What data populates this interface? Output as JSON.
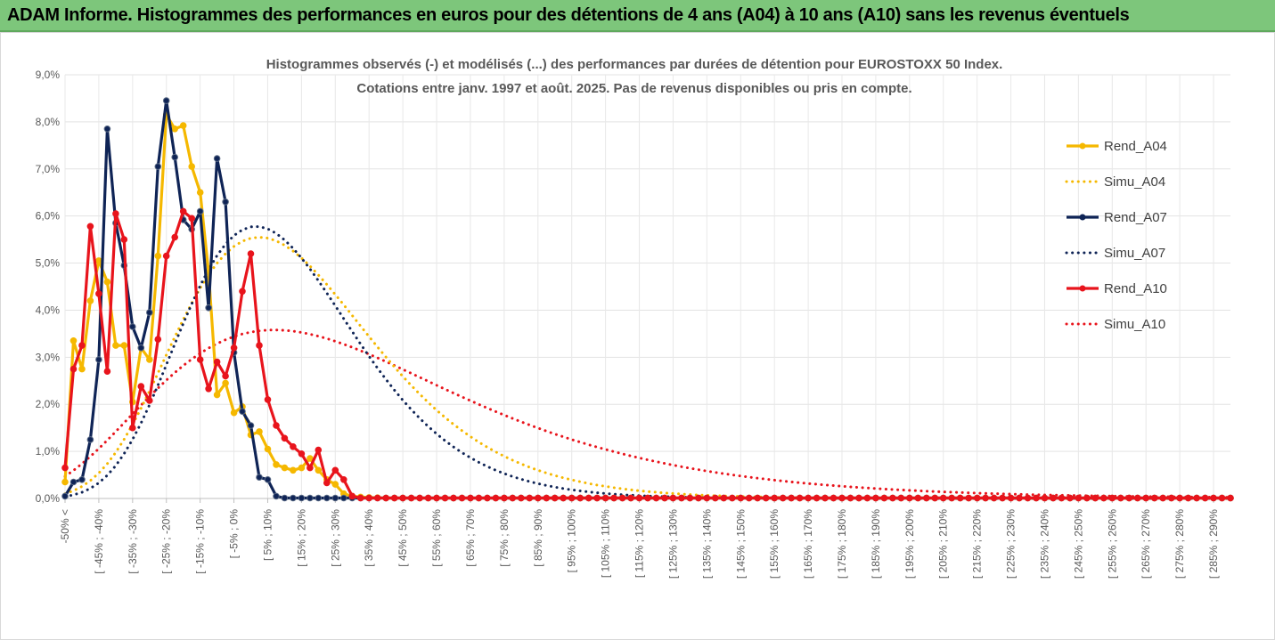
{
  "header": {
    "title": "ADAM Informe. Histogrammes des performances en euros pour des détentions de 4 ans (A04) à 10 ans (A10) sans les revenus éventuels"
  },
  "chart_data": {
    "type": "line",
    "title_lines": [
      "Histogrammes observés (-) et modélisés (...) des performances par durées de détention pour EUROSTOXX 50 Index.",
      "Cotations entre janv. 1997 et août. 2025. Pas de revenus disponibles ou pris en compte."
    ],
    "xlabel": "",
    "ylabel": "",
    "ylim": [
      0,
      9
    ],
    "y_ticks": [
      "0,0%",
      "1,0%",
      "2,0%",
      "3,0%",
      "4,0%",
      "5,0%",
      "6,0%",
      "7,0%",
      "8,0%",
      "9,0%"
    ],
    "legend_position": "right",
    "grid": true,
    "x": [
      -50,
      -47.5,
      -45,
      -42.5,
      -40,
      -37.5,
      -35,
      -32.5,
      -30,
      -27.5,
      -25,
      -22.5,
      -20,
      -17.5,
      -15,
      -12.5,
      -10,
      -7.5,
      -5,
      -2.5,
      0,
      2.5,
      5,
      7.5,
      10,
      12.5,
      15,
      17.5,
      20,
      22.5,
      25,
      27.5,
      30,
      32.5,
      35,
      37.5,
      40,
      42.5,
      45,
      47.5,
      50,
      52.5,
      55,
      57.5,
      60,
      62.5,
      65,
      67.5,
      70,
      72.5,
      75,
      77.5,
      80,
      82.5,
      85,
      87.5,
      90,
      92.5,
      95,
      97.5,
      100,
      102.5,
      105,
      107.5,
      110,
      112.5,
      115,
      117.5,
      120,
      122.5,
      125,
      127.5,
      130,
      132.5,
      135,
      137.5,
      140,
      142.5,
      145,
      147.5,
      150,
      152.5,
      155,
      157.5,
      160,
      162.5,
      165,
      167.5,
      170,
      172.5,
      175,
      177.5,
      180,
      182.5,
      185,
      187.5,
      190,
      192.5,
      195,
      197.5,
      200,
      202.5,
      205,
      207.5,
      210,
      212.5,
      215,
      217.5,
      220,
      222.5,
      225,
      227.5,
      230,
      232.5,
      235,
      237.5,
      240,
      242.5,
      245,
      247.5,
      250,
      252.5,
      255,
      257.5,
      260,
      262.5,
      265,
      267.5,
      270,
      272.5,
      275,
      277.5,
      280,
      282.5,
      285,
      287.5,
      290,
      292.5,
      295
    ],
    "categories": [
      "-50% <",
      "[ -45% ; -40%",
      "[ -35% ; -30%",
      "[ -25% ; -20%",
      "[ -15% ; -10%",
      "[ -5% ; 0%",
      "[ 5% ; 10%",
      "[ 15% ; 20%",
      "[ 25% ; 30%",
      "[ 35% ; 40%",
      "[ 45% ; 50%",
      "[ 55% ; 60%",
      "[ 65% ; 70%",
      "[ 75% ; 80%",
      "[ 85% ; 90%",
      "[ 95% ; 100%",
      "[ 105% ; 110%",
      "[ 115% ; 120%",
      "[ 125% ; 130%",
      "[ 135% ; 140%",
      "[ 145% ; 150%",
      "[ 155% ; 160%",
      "[ 165% ; 170%",
      "[ 175% ; 180%",
      "[ 185% ; 190%",
      "[ 195% ; 200%",
      "[ 205% ; 210%",
      "[ 215% ; 220%",
      "[ 225% ; 230%",
      "[ 235% ; 240%",
      "[ 245% ; 250%",
      "[ 255% ; 260%",
      "[ 265% ; 270%",
      "[ 275% ; 280%",
      "[ 285% ; 290%"
    ],
    "category_x": [
      -50,
      -40,
      -30,
      -20,
      -10,
      0,
      10,
      20,
      30,
      40,
      50,
      60,
      70,
      80,
      90,
      100,
      110,
      120,
      130,
      140,
      150,
      160,
      170,
      180,
      190,
      200,
      210,
      220,
      230,
      240,
      250,
      260,
      270,
      280,
      290
    ],
    "series": [
      {
        "name": "Rend_A04",
        "color": "#f5b800",
        "style": "solid",
        "markers": true,
        "points": [
          [
            -50,
            0.35
          ],
          [
            -47.5,
            3.35
          ],
          [
            -45,
            2.75
          ],
          [
            -42.5,
            4.2
          ],
          [
            -40,
            5.05
          ],
          [
            -37.5,
            4.6
          ],
          [
            -35,
            3.25
          ],
          [
            -32.5,
            3.25
          ],
          [
            -30,
            2.05
          ],
          [
            -27.5,
            3.2
          ],
          [
            -25,
            2.95
          ],
          [
            -22.5,
            5.15
          ],
          [
            -20,
            8.15
          ],
          [
            -17.5,
            7.85
          ],
          [
            -15,
            7.92
          ],
          [
            -12.5,
            7.05
          ],
          [
            -10,
            6.5
          ],
          [
            -7.5,
            4.8
          ],
          [
            -5,
            2.2
          ],
          [
            -2.5,
            2.45
          ],
          [
            0,
            1.82
          ],
          [
            2.5,
            1.95
          ],
          [
            5,
            1.35
          ],
          [
            7.5,
            1.42
          ],
          [
            10,
            1.05
          ],
          [
            12.5,
            0.72
          ],
          [
            15,
            0.65
          ],
          [
            17.5,
            0.6
          ],
          [
            20,
            0.65
          ],
          [
            22.5,
            0.85
          ],
          [
            25,
            0.6
          ],
          [
            27.5,
            0.4
          ],
          [
            30,
            0.3
          ],
          [
            32.5,
            0.1
          ],
          [
            35,
            0.05
          ],
          [
            37.5,
            0.03
          ],
          [
            40,
            0.02
          ],
          [
            45,
            0.01
          ],
          [
            295,
            0.01
          ]
        ]
      },
      {
        "name": "Simu_A04",
        "color": "#f5b800",
        "style": "dotted",
        "markers": false
      },
      {
        "name": "Rend_A07",
        "color": "#0f2456",
        "style": "solid",
        "markers": true,
        "points": [
          [
            -50,
            0.05
          ],
          [
            -47.5,
            0.35
          ],
          [
            -45,
            0.4
          ],
          [
            -42.5,
            1.25
          ],
          [
            -40,
            2.95
          ],
          [
            -37.5,
            7.85
          ],
          [
            -35,
            5.85
          ],
          [
            -32.5,
            4.95
          ],
          [
            -30,
            3.65
          ],
          [
            -27.5,
            3.2
          ],
          [
            -25,
            3.95
          ],
          [
            -22.5,
            7.05
          ],
          [
            -20,
            8.45
          ],
          [
            -17.5,
            7.25
          ],
          [
            -15,
            5.92
          ],
          [
            -12.5,
            5.72
          ],
          [
            -10,
            6.1
          ],
          [
            -7.5,
            4.05
          ],
          [
            -5,
            7.22
          ],
          [
            -2.5,
            6.3
          ],
          [
            0,
            3.1
          ],
          [
            2.5,
            1.85
          ],
          [
            5,
            1.55
          ],
          [
            7.5,
            0.45
          ],
          [
            10,
            0.4
          ],
          [
            12.5,
            0.05
          ],
          [
            15,
            0.01
          ],
          [
            295,
            0.01
          ]
        ]
      },
      {
        "name": "Simu_A07",
        "color": "#0f2456",
        "style": "dotted",
        "markers": false
      },
      {
        "name": "Rend_A10",
        "color": "#e8141c",
        "style": "solid",
        "markers": true,
        "points": [
          [
            -50,
            0.65
          ],
          [
            -47.5,
            2.75
          ],
          [
            -45,
            3.25
          ],
          [
            -42.5,
            5.78
          ],
          [
            -40,
            4.35
          ],
          [
            -37.5,
            2.7
          ],
          [
            -35,
            6.05
          ],
          [
            -32.5,
            5.5
          ],
          [
            -30,
            1.5
          ],
          [
            -27.5,
            2.38
          ],
          [
            -25,
            2.08
          ],
          [
            -22.5,
            3.38
          ],
          [
            -20,
            5.15
          ],
          [
            -17.5,
            5.55
          ],
          [
            -15,
            6.1
          ],
          [
            -12.5,
            5.95
          ],
          [
            -10,
            2.95
          ],
          [
            -7.5,
            2.33
          ],
          [
            -5,
            2.9
          ],
          [
            -2.5,
            2.6
          ],
          [
            0,
            3.2
          ],
          [
            2.5,
            4.4
          ],
          [
            5,
            5.2
          ],
          [
            7.5,
            3.25
          ],
          [
            10,
            2.1
          ],
          [
            12.5,
            1.55
          ],
          [
            15,
            1.28
          ],
          [
            17.5,
            1.1
          ],
          [
            20,
            0.95
          ],
          [
            22.5,
            0.65
          ],
          [
            25,
            1.03
          ],
          [
            27.5,
            0.33
          ],
          [
            30,
            0.6
          ],
          [
            32.5,
            0.4
          ],
          [
            35,
            0.05
          ],
          [
            37.5,
            0.01
          ],
          [
            295,
            0.01
          ]
        ]
      },
      {
        "name": "Simu_A10",
        "color": "#e8141c",
        "style": "dotted",
        "markers": false
      }
    ]
  }
}
